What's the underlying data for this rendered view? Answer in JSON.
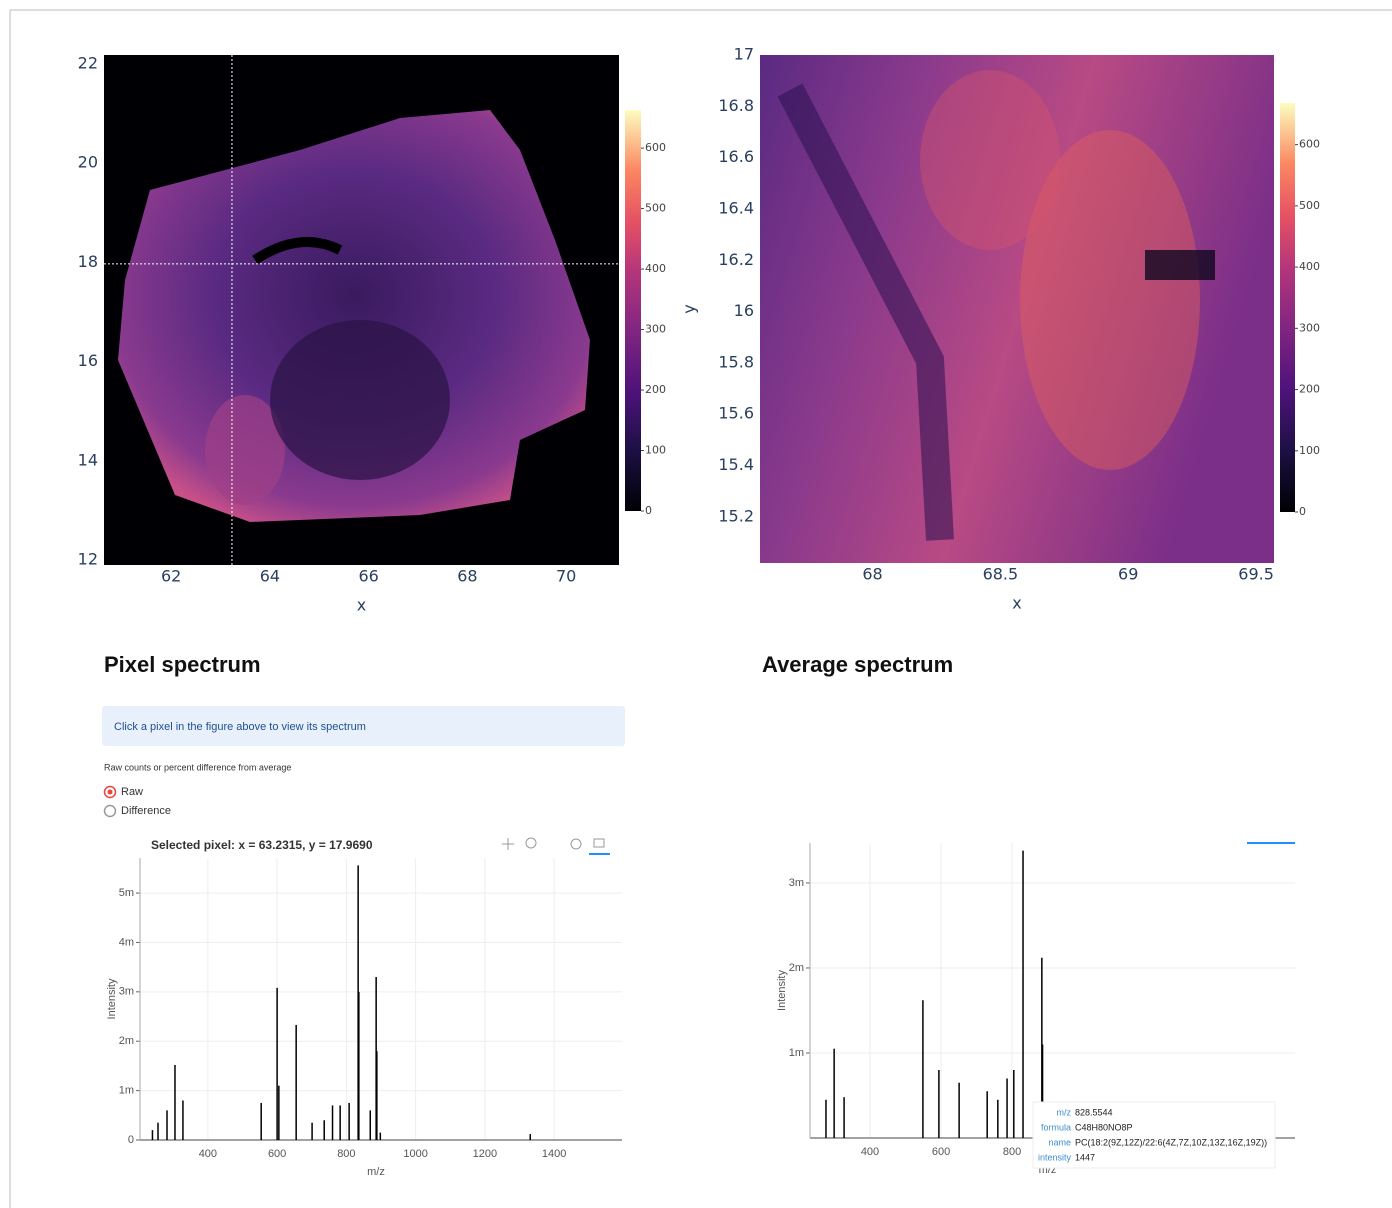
{
  "page": {
    "pixel_heading": "Pixel spectrum",
    "average_heading": "Average spectrum",
    "info": "Click a pixel in the figure above to view its spectrum",
    "mode_label": "Raw counts or percent difference from average",
    "mode_options": [
      "Raw",
      "Difference"
    ],
    "mode_selected": 0
  },
  "chart_data": [
    {
      "type": "heatmap",
      "x_label": "x",
      "xlim": [
        60.64,
        71.07
      ],
      "xticks": [
        62,
        64,
        66,
        68,
        70
      ],
      "ylim": [
        11.9,
        22.18
      ],
      "yticks": [
        12,
        14,
        16,
        18,
        20,
        22
      ],
      "clim": [
        0,
        663
      ],
      "cticks": [
        0,
        100,
        200,
        300,
        400,
        500,
        600
      ],
      "crosshair": {
        "x": 63.2315,
        "y": 17.969
      }
    },
    {
      "type": "heatmap",
      "x_label": "x",
      "y_label": "y",
      "xlim": [
        67.56,
        69.57
      ],
      "xticks": [
        68,
        68.5,
        69,
        69.5
      ],
      "ylim": [
        15.02,
        17
      ],
      "yticks": [
        15.2,
        15.4,
        15.6,
        15.8,
        16,
        16.2,
        16.4,
        16.6,
        16.8,
        17
      ],
      "clim": [
        0,
        668
      ],
      "cticks": [
        0,
        100,
        200,
        300,
        400,
        500,
        600
      ]
    },
    {
      "type": "spectrum",
      "title": "Selected pixel: x = 63.2315, y = 17.9690",
      "x_label": "m/z",
      "y_label": "Intensity",
      "color": "#000000",
      "x": [
        240,
        256,
        282,
        305,
        328,
        554,
        600,
        605,
        655,
        701,
        736,
        760,
        782,
        808,
        834,
        836,
        869,
        886,
        888,
        898,
        1331
      ],
      "values": [
        0.0002,
        0.00035,
        0.0006,
        0.00152,
        0.0008,
        0.00075,
        0.00308,
        0.0011,
        0.00233,
        0.00035,
        0.0004,
        0.0007,
        0.0007,
        0.00075,
        0.00556,
        0.003,
        0.0006,
        0.0033,
        0.0018,
        0.00015,
        0.00012
      ],
      "xlim": [
        204,
        1596
      ],
      "xticks": [
        400,
        600,
        800,
        1000,
        1200,
        1400
      ],
      "ylim": [
        0,
        0.00571
      ],
      "yticks": [
        0,
        {
          "value": 0.001,
          "label": "1m"
        },
        {
          "value": 0.002,
          "label": "2m"
        },
        {
          "value": 0.003,
          "label": "3m"
        },
        {
          "value": 0.004,
          "label": "4m"
        },
        {
          "value": 0.005,
          "label": "5m"
        }
      ],
      "grid": true
    },
    {
      "type": "spectrum",
      "x_label": "m/z",
      "y_label": "Intensity",
      "color": "#000000",
      "x": [
        276,
        299,
        327,
        549,
        594,
        651,
        730,
        760,
        786,
        805,
        831,
        884,
        886
      ],
      "values": [
        0.00045,
        0.00105,
        0.00048,
        0.00162,
        0.0008,
        0.00065,
        0.00055,
        0.00045,
        0.0007,
        0.0008,
        0.00338,
        0.00212,
        0.0011
      ],
      "xlim": [
        231,
        1597
      ],
      "xticks": [
        400,
        600,
        800
      ],
      "ylim": [
        0,
        0.00347
      ],
      "yticks": [
        {
          "value": 0.001,
          "label": "1m"
        },
        {
          "value": 0.002,
          "label": "2m"
        },
        {
          "value": 0.003,
          "label": "3m"
        }
      ],
      "grid": true,
      "tooltip": [
        {
          "label": "m/z",
          "value": 828.5544
        },
        {
          "label": "formula",
          "value": "C48H80NO8P"
        },
        {
          "label": "name",
          "value": "PC(18:2(9Z,12Z)/22:6(4Z,7Z,10Z,13Z,16Z,19Z))"
        },
        {
          "label": "intensity",
          "value": 1447
        }
      ]
    }
  ]
}
